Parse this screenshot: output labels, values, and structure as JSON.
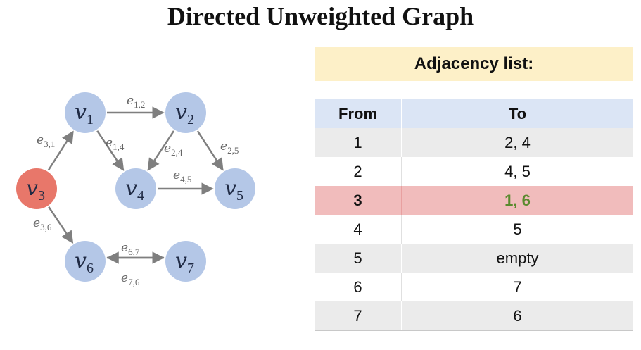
{
  "title": "Directed Unweighted Graph",
  "colors": {
    "node_fill": "#b4c7e7",
    "highlight_node_fill": "#e8776a",
    "edge_color": "#7f7f7f",
    "highlight_row_bg": "#f1bcbc",
    "highlight_text": "#5a8a2e",
    "adjacency_header_bg": "#fdf0c8",
    "table_header_bg": "#dbe5f5"
  },
  "graph": {
    "nodes": [
      {
        "id": "v1",
        "letter": "v",
        "sub": "1",
        "highlight": false
      },
      {
        "id": "v2",
        "letter": "v",
        "sub": "2",
        "highlight": false
      },
      {
        "id": "v3",
        "letter": "v",
        "sub": "3",
        "highlight": true
      },
      {
        "id": "v4",
        "letter": "v",
        "sub": "4",
        "highlight": false
      },
      {
        "id": "v5",
        "letter": "v",
        "sub": "5",
        "highlight": false
      },
      {
        "id": "v6",
        "letter": "v",
        "sub": "6",
        "highlight": false
      },
      {
        "id": "v7",
        "letter": "v",
        "sub": "7",
        "highlight": false
      }
    ],
    "edges": [
      {
        "from": "v1",
        "to": "v2",
        "letter": "e",
        "sub": "1,2"
      },
      {
        "from": "v1",
        "to": "v4",
        "letter": "e",
        "sub": "1,4"
      },
      {
        "from": "v2",
        "to": "v4",
        "letter": "e",
        "sub": "2,4"
      },
      {
        "from": "v2",
        "to": "v5",
        "letter": "e",
        "sub": "2,5"
      },
      {
        "from": "v3",
        "to": "v1",
        "letter": "e",
        "sub": "3,1"
      },
      {
        "from": "v3",
        "to": "v6",
        "letter": "e",
        "sub": "3,6"
      },
      {
        "from": "v4",
        "to": "v5",
        "letter": "e",
        "sub": "4,5"
      },
      {
        "from": "v6",
        "to": "v7",
        "letter": "e",
        "sub": "6,7"
      },
      {
        "from": "v7",
        "to": "v6",
        "letter": "e",
        "sub": "7,6"
      }
    ]
  },
  "adjacency": {
    "heading": "Adjacency list:",
    "columns": {
      "from": "From",
      "to": "To"
    },
    "rows": [
      {
        "from": "1",
        "to": "2, 4",
        "highlight": false
      },
      {
        "from": "2",
        "to": "4, 5",
        "highlight": false
      },
      {
        "from": "3",
        "to": "1, 6",
        "highlight": true
      },
      {
        "from": "4",
        "to": "5",
        "highlight": false
      },
      {
        "from": "5",
        "to": "empty",
        "highlight": false
      },
      {
        "from": "6",
        "to": "7",
        "highlight": false
      },
      {
        "from": "7",
        "to": "6",
        "highlight": false
      }
    ]
  }
}
